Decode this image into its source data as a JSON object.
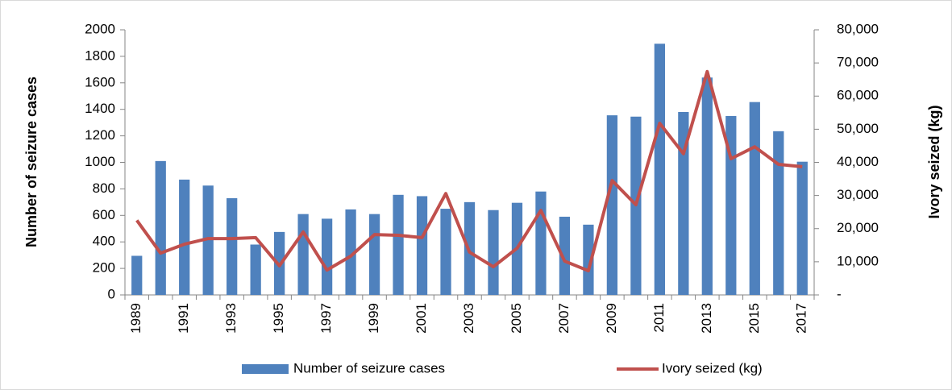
{
  "chart_data": {
    "type": "bar_line",
    "y_label": "Number of seizure cases",
    "y2_label": "Ivory seized (kg)",
    "categories": [
      "1989",
      null,
      "1991",
      null,
      "1993",
      null,
      "1995",
      null,
      "1997",
      null,
      "1999",
      null,
      "2001",
      null,
      "2003",
      null,
      "2005",
      null,
      "2007",
      null,
      "2009",
      null,
      "2011",
      null,
      "2013",
      null,
      "2015",
      null,
      "2017"
    ],
    "series": [
      {
        "name": "Number of seizure cases",
        "type": "bar",
        "color": "#4f81bd",
        "values": [
          295,
          1010,
          870,
          825,
          730,
          380,
          475,
          610,
          575,
          645,
          610,
          755,
          745,
          650,
          700,
          640,
          695,
          780,
          590,
          530,
          1355,
          1345,
          1895,
          1380,
          1640,
          1350,
          1455,
          1235,
          1005
        ]
      },
      {
        "name": "Ivory seized (kg)",
        "type": "line",
        "axis": "y2",
        "color": "#c0504d",
        "values": [
          22500,
          12600,
          15300,
          17000,
          17000,
          17300,
          8800,
          19000,
          7500,
          11700,
          18200,
          18000,
          17300,
          30600,
          12900,
          8500,
          14100,
          25500,
          10200,
          7300,
          34500,
          27200,
          51800,
          42600,
          67400,
          41100,
          44700,
          39400,
          38700
        ]
      }
    ],
    "ylim": [
      0,
      2000
    ],
    "yticks": [
      0,
      200,
      400,
      600,
      800,
      1000,
      1200,
      1400,
      1600,
      1800,
      2000
    ],
    "y2lim": [
      0,
      80000
    ],
    "y2ticks": [
      {
        "value": 0,
        "label": "-"
      },
      {
        "value": 10000,
        "label": "10,000"
      },
      {
        "value": 20000,
        "label": "20,000"
      },
      {
        "value": 30000,
        "label": "30,000"
      },
      {
        "value": 40000,
        "label": "40,000"
      },
      {
        "value": 50000,
        "label": "50,000"
      },
      {
        "value": 60000,
        "label": "60,000"
      },
      {
        "value": 70000,
        "label": "70,000"
      },
      {
        "value": 80000,
        "label": "80,000"
      }
    ],
    "grid": false,
    "legend": "bottom"
  }
}
